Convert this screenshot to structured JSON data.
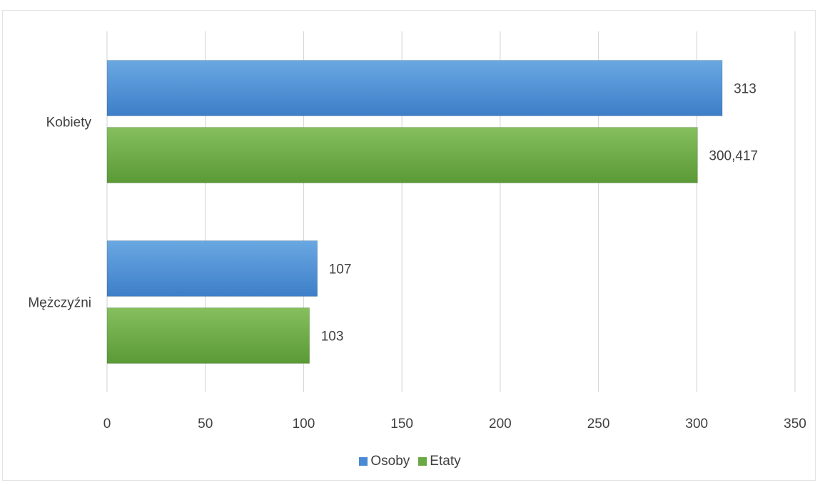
{
  "chart_data": {
    "type": "bar",
    "orientation": "horizontal",
    "categories": [
      "Kobiety",
      "Mężczyźni"
    ],
    "series": [
      {
        "name": "Osoby",
        "values": [
          313,
          107
        ],
        "labels": [
          "313",
          "107"
        ],
        "color": "#4a8ad4"
      },
      {
        "name": "Etaty",
        "values": [
          300.417,
          103
        ],
        "labels": [
          "300,417",
          "103"
        ],
        "color": "#6aaa45"
      }
    ],
    "xlim": [
      0,
      350
    ],
    "xticks": [
      0,
      50,
      100,
      150,
      200,
      250,
      300,
      350
    ],
    "grid": true,
    "legend_position": "bottom"
  }
}
